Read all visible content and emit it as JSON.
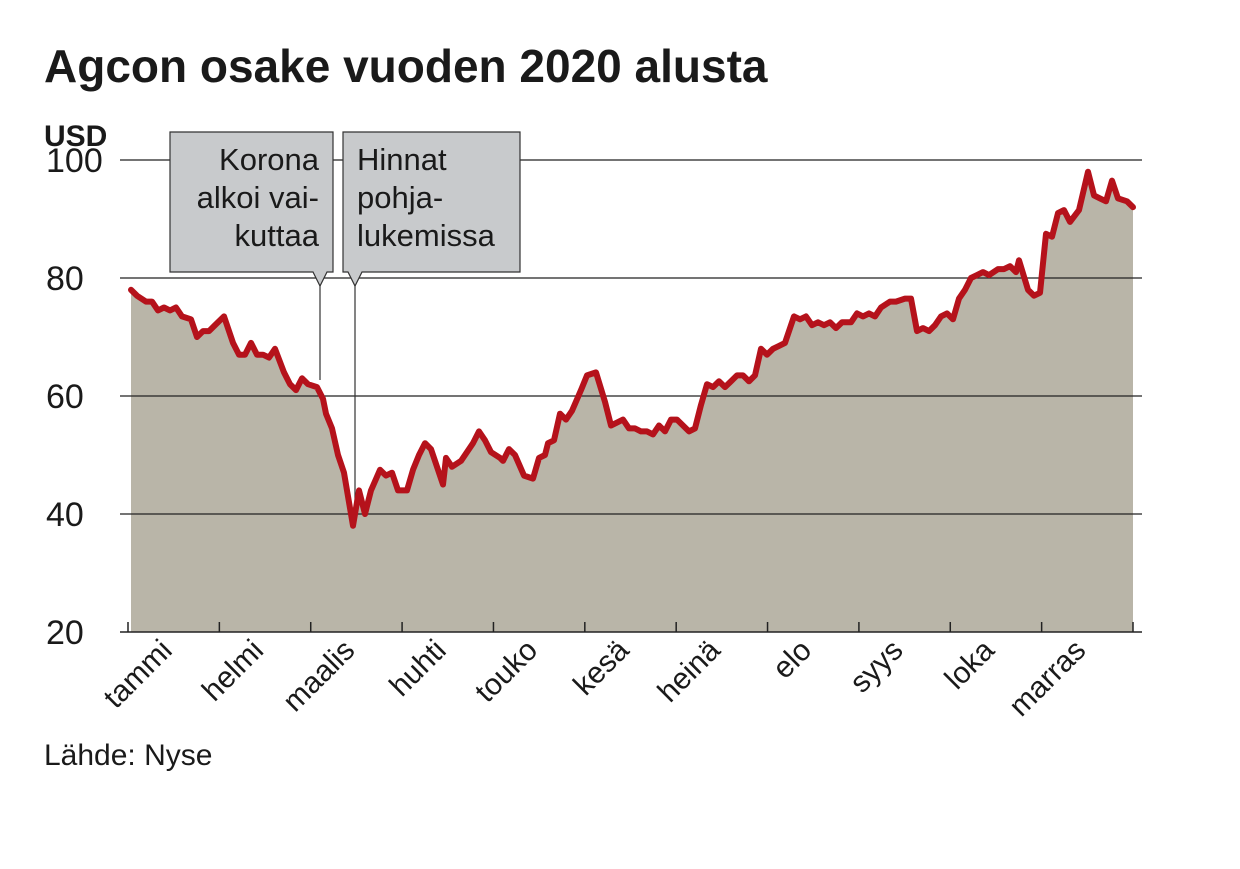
{
  "chart_data": {
    "type": "area",
    "title": "Agcon osake vuoden 2020 alusta",
    "y_label": "USD",
    "source": "Lähde: Nyse",
    "categories": [
      "tammi",
      "helmi",
      "maalis",
      "huhti",
      "touko",
      "kesä",
      "heinä",
      "elo",
      "syys",
      "loka",
      "marras"
    ],
    "xlim": [
      0,
      335
    ],
    "ylim": [
      20,
      100
    ],
    "yticks": [
      20,
      40,
      60,
      80,
      100
    ],
    "grid": true,
    "fill_color": "#b9b5a8",
    "annotations": [
      {
        "lines": [
          "Korona",
          "alkoi vai-",
          "kuttaa"
        ],
        "align": "right"
      },
      {
        "lines": [
          "Hinnat",
          "pohja-",
          "lukemissa"
        ],
        "align": "left"
      }
    ],
    "series": [
      {
        "color": "#b5121b",
        "x": [
          1,
          3,
          6,
          8,
          10,
          12,
          14,
          16,
          18,
          21,
          23,
          25,
          27,
          29,
          32,
          35,
          37,
          39,
          41,
          43,
          45,
          47,
          49,
          52,
          54,
          56,
          58,
          60,
          63,
          65,
          66,
          68,
          70,
          72,
          75,
          77,
          79,
          81,
          84,
          86,
          88,
          90,
          93,
          95,
          97,
          99,
          101,
          103,
          105,
          106,
          108,
          111,
          113,
          115,
          117,
          119,
          121,
          124,
          125,
          127,
          129,
          132,
          135,
          137,
          139,
          140,
          142,
          144,
          146,
          148,
          151,
          153,
          156,
          159,
          161,
          163,
          165,
          167,
          169,
          171,
          173,
          175,
          177,
          179,
          181,
          183,
          185,
          187,
          189,
          191,
          193,
          195,
          197,
          199,
          201,
          203,
          205,
          207,
          209,
          211,
          213,
          215,
          217,
          219,
          222,
          224,
          226,
          228,
          230,
          232,
          234,
          236,
          238,
          241,
          243,
          245,
          247,
          249,
          251,
          254,
          256,
          259,
          261,
          263,
          265,
          267,
          269,
          271,
          273,
          275,
          277,
          279,
          281,
          283,
          285,
          287,
          290,
          292,
          294,
          296,
          297,
          300,
          302,
          304,
          306,
          308,
          310,
          312,
          314,
          317,
          320,
          322,
          324,
          326,
          328,
          330,
          333,
          335
        ],
        "values": [
          78,
          77,
          76,
          76,
          74.5,
          75,
          74.5,
          75,
          73.5,
          73,
          70,
          71,
          71,
          72,
          73.5,
          69,
          67,
          67,
          69,
          67,
          67,
          66.5,
          68,
          64,
          62,
          61,
          63,
          62,
          61.5,
          59.5,
          57,
          54.5,
          50,
          47,
          38,
          44,
          40,
          44,
          47.5,
          46.5,
          47,
          44,
          44,
          47.5,
          50,
          52,
          51,
          48,
          45,
          49.5,
          48,
          49,
          50.5,
          52,
          54,
          52.5,
          50.5,
          49.5,
          49,
          51,
          50,
          46.5,
          46,
          49.5,
          50,
          52,
          52.5,
          57,
          56,
          57.5,
          61,
          63.5,
          64,
          59,
          55,
          55.5,
          56,
          54.5,
          54.5,
          54,
          54,
          53.5,
          55,
          54,
          56,
          56,
          55,
          54,
          54.5,
          58.5,
          62,
          61.5,
          62.5,
          61.5,
          62.5,
          63.5,
          63.5,
          62.5,
          63.5,
          68,
          67,
          68,
          68.5,
          69,
          73.5,
          73,
          73.5,
          72,
          72.5,
          72,
          72.5,
          71.5,
          72.5,
          72.5,
          74,
          73.5,
          74,
          73.5,
          75,
          76,
          76,
          76.5,
          76.5,
          71,
          71.5,
          71,
          72,
          73.5,
          74,
          73,
          76.5,
          78,
          80,
          80.5,
          81,
          80.5,
          81.5,
          81.5,
          82,
          81,
          83,
          78,
          77,
          77.5,
          87.5,
          87,
          91,
          91.5,
          89.5,
          91.5,
          98,
          94,
          93.5,
          93,
          96.5,
          93.5,
          93,
          92
        ]
      }
    ]
  }
}
